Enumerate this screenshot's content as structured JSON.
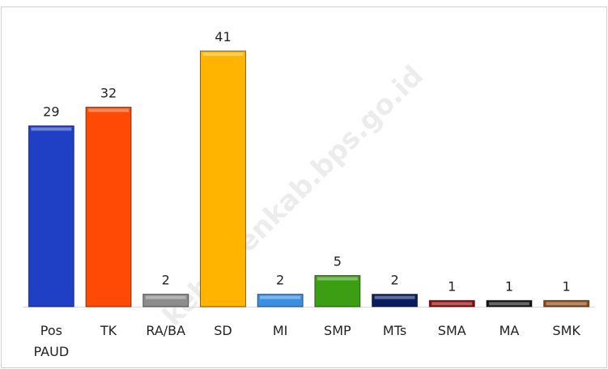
{
  "chart_data": {
    "type": "bar",
    "categories": [
      "Pos PAUD",
      "TK",
      "RA/BA",
      "SD",
      "MI",
      "SMP",
      "MTs",
      "SMA",
      "MA",
      "SMK"
    ],
    "values": [
      29,
      32,
      2,
      41,
      2,
      5,
      2,
      1,
      1,
      1
    ],
    "colors": [
      "#1f3fc4",
      "#ff4a05",
      "#8c8c8c",
      "#ffb400",
      "#3a8fe0",
      "#3c9e12",
      "#0b1c5e",
      "#8a0a0a",
      "#141414",
      "#8b4a1a"
    ],
    "watermark": "kebumenkab.bps.go.id"
  }
}
